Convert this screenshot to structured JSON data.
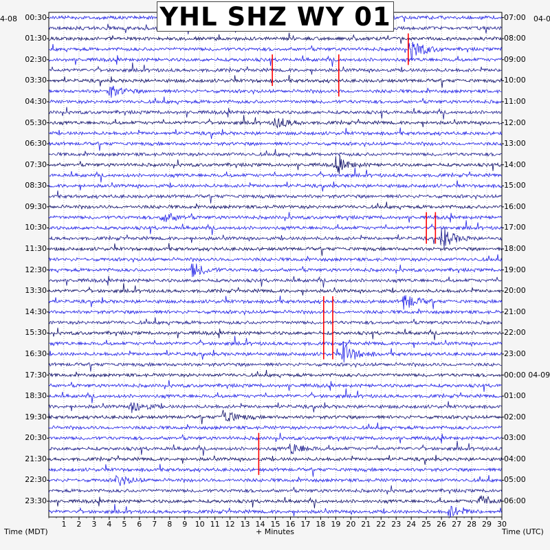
{
  "title": "YHL SHZ WY 01",
  "corner_left": "4-08",
  "corner_right": "04-0",
  "x_axis_label": "+ Minutes",
  "left_axis_label": "Time (MDT)",
  "right_axis_label": "Time (UTC)",
  "colors": {
    "dark": "#0b0b66",
    "navy": "#1a1a8c",
    "blue": "#1e1ee6",
    "event": "#ff0000",
    "background": "#ffffff"
  },
  "chart_data": {
    "type": "line",
    "x_ticks": [
      "1",
      "2",
      "3",
      "4",
      "5",
      "6",
      "7",
      "8",
      "9",
      "10",
      "11",
      "12",
      "13",
      "14",
      "15",
      "16",
      "17",
      "18",
      "19",
      "20",
      "21",
      "22",
      "23",
      "24",
      "25",
      "26",
      "27",
      "28",
      "29",
      "30"
    ],
    "xlim": [
      0,
      30
    ],
    "left_ticks": [
      "00:30",
      "01:30",
      "02:30",
      "03:30",
      "04:30",
      "05:30",
      "06:30",
      "07:30",
      "08:30",
      "09:30",
      "10:30",
      "11:30",
      "12:30",
      "13:30",
      "14:30",
      "15:30",
      "16:30",
      "17:30",
      "18:30",
      "19:30",
      "20:30",
      "21:30",
      "22:30",
      "23:30"
    ],
    "right_ticks": [
      "07:00",
      "08:00",
      "09:00",
      "10:00",
      "11:00",
      "12:00",
      "13:00",
      "14:00",
      "15:00",
      "16:00",
      "17:00",
      "18:00",
      "19:00",
      "20:00",
      "21:00",
      "22:00",
      "23:00",
      "00:00 04-09",
      "01:00",
      "02:00",
      "03:00",
      "04:00",
      "05:00",
      "06:00"
    ],
    "trace_rows": 48,
    "row_minutes": 30,
    "trace_colors_cycle": [
      "#1e1ee6",
      "#1a1a8c",
      "#0b0b66",
      "#1e1ee6"
    ],
    "events": [
      {
        "row": 3,
        "minute": 24.0,
        "strength": 0.9
      },
      {
        "row": 7,
        "minute": 4.0,
        "strength": 0.5
      },
      {
        "row": 10,
        "minute": 15.0,
        "strength": 0.5
      },
      {
        "row": 14,
        "minute": 19.0,
        "strength": 0.6
      },
      {
        "row": 19,
        "minute": 7.5,
        "strength": 0.5
      },
      {
        "row": 21,
        "minute": 26.0,
        "strength": 0.9
      },
      {
        "row": 24,
        "minute": 9.5,
        "strength": 0.6
      },
      {
        "row": 27,
        "minute": 23.5,
        "strength": 0.7
      },
      {
        "row": 32,
        "minute": 19.5,
        "strength": 0.9
      },
      {
        "row": 37,
        "minute": 5.5,
        "strength": 0.5
      },
      {
        "row": 38,
        "minute": 11.5,
        "strength": 0.7
      },
      {
        "row": 41,
        "minute": 16.0,
        "strength": 0.5
      },
      {
        "row": 44,
        "minute": 4.5,
        "strength": 0.5
      },
      {
        "row": 46,
        "minute": 28.5,
        "strength": 0.5
      },
      {
        "row": 47,
        "minute": 26.5,
        "strength": 0.5
      }
    ],
    "red_spikes": [
      {
        "row_start": 2,
        "row_end": 4,
        "minute": 23.8
      },
      {
        "row_start": 4,
        "row_end": 6,
        "minute": 14.8
      },
      {
        "row_start": 4,
        "row_end": 7,
        "minute": 19.2
      },
      {
        "row_start": 19,
        "row_end": 21,
        "minute": 25.0
      },
      {
        "row_start": 19,
        "row_end": 21,
        "minute": 25.6
      },
      {
        "row_start": 27,
        "row_end": 32,
        "minute": 18.2
      },
      {
        "row_start": 27,
        "row_end": 32,
        "minute": 18.8
      },
      {
        "row_start": 40,
        "row_end": 43,
        "minute": 13.9
      }
    ]
  }
}
